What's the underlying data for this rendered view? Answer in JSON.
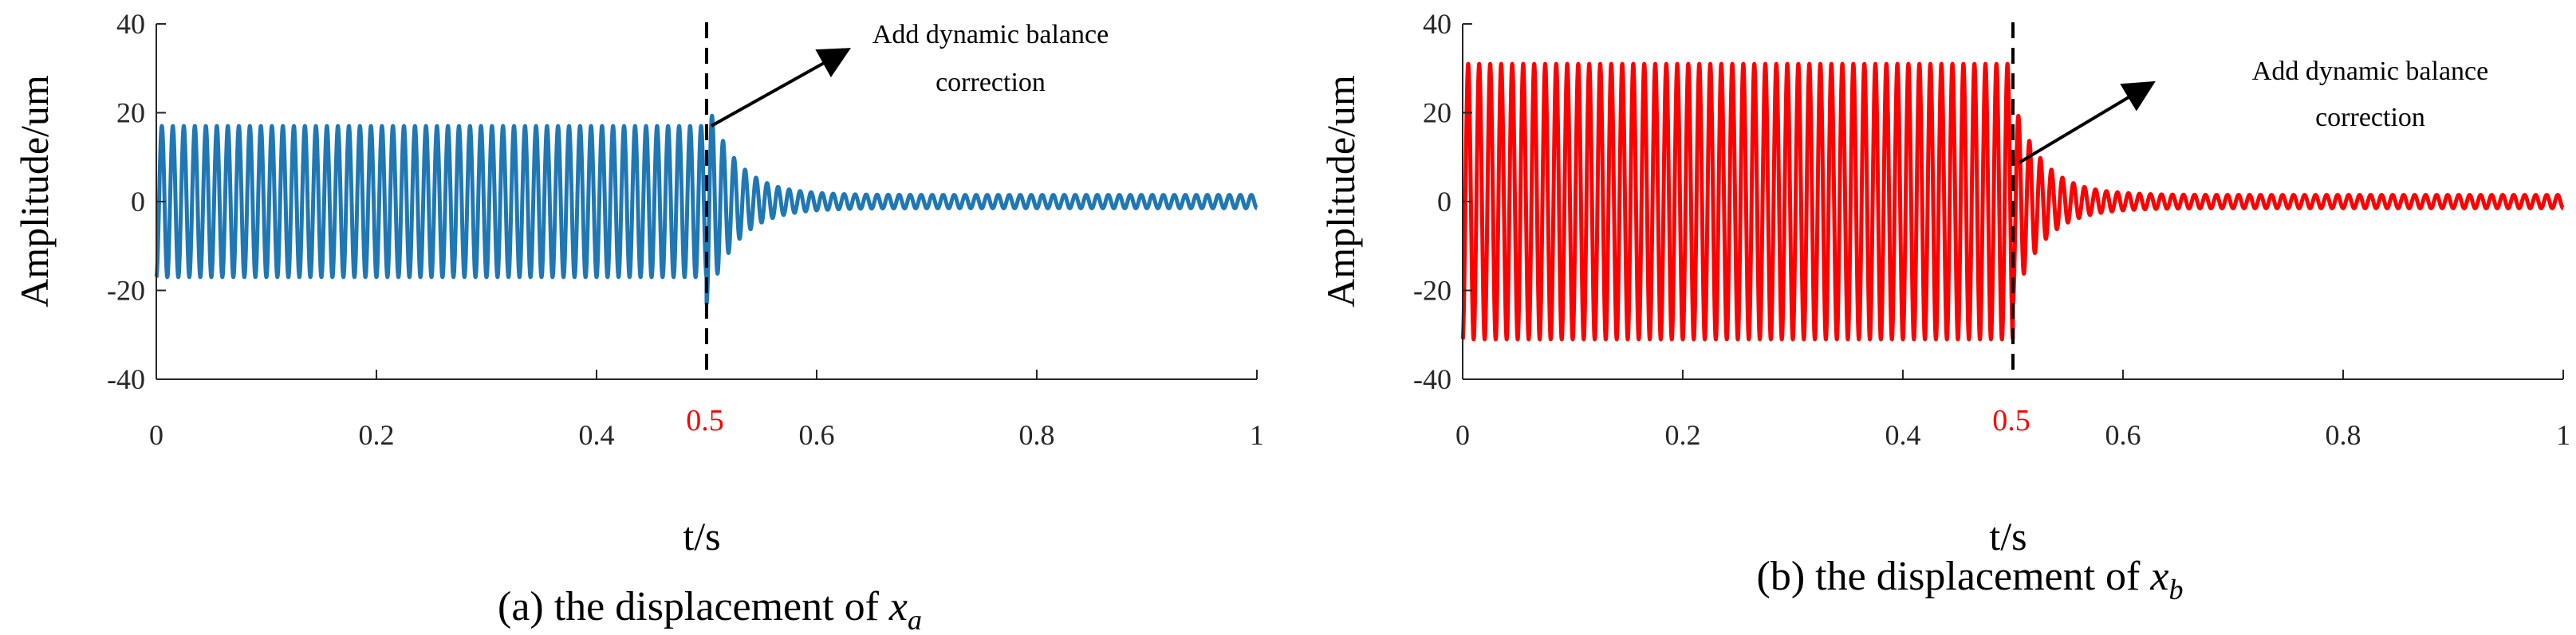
{
  "chart_data": [
    {
      "type": "line",
      "panel": "a",
      "caption_prefix": "(a) the displacement of ",
      "caption_var": "x",
      "caption_sub": "a",
      "xlabel": "t/s",
      "ylabel": "Amplitude/um",
      "xlim": [
        0,
        1
      ],
      "ylim": [
        -40,
        40
      ],
      "xticks": [
        "0",
        "0.2",
        "0.4",
        "0.6",
        "0.8",
        "1"
      ],
      "xtick_values": [
        0,
        0.2,
        0.4,
        0.6,
        0.8,
        1
      ],
      "yticks": [
        "40",
        "20",
        "0",
        "-20",
        "-40"
      ],
      "ytick_values": [
        40,
        20,
        0,
        -20,
        -40
      ],
      "marker_label": "0.5",
      "marker_x": 0.5,
      "annotation": [
        "Add dynamic balance",
        "correction"
      ],
      "color": "#1f77b4",
      "series": [
        {
          "name": "x_a",
          "frequency_hz": 100,
          "amplitude_before": 17,
          "correction_time": 0.5,
          "peak_after_correction": 23,
          "decay_rate": 38,
          "residual_amplitude": 1.5
        }
      ]
    },
    {
      "type": "line",
      "panel": "b",
      "caption_prefix": "(b) the displacement of ",
      "caption_var": "x",
      "caption_sub": "b",
      "xlabel": "t/s",
      "ylabel": "Amplitude/um",
      "xlim": [
        0,
        1
      ],
      "ylim": [
        -40,
        40
      ],
      "xticks": [
        "0",
        "0.2",
        "0.4",
        "0.6",
        "0.8",
        "1"
      ],
      "xtick_values": [
        0,
        0.2,
        0.4,
        0.6,
        0.8,
        1
      ],
      "yticks": [
        "40",
        "20",
        "0",
        "-20",
        "-40"
      ],
      "ytick_values": [
        40,
        20,
        0,
        -20,
        -40
      ],
      "marker_label": "0.5",
      "marker_x": 0.5,
      "annotation": [
        "Add dynamic balance",
        "correction"
      ],
      "color": "#ff0000",
      "series": [
        {
          "name": "x_b",
          "frequency_hz": 100,
          "amplitude_before": 31,
          "correction_time": 0.5,
          "peak_after_correction": 23,
          "decay_rate": 38,
          "residual_amplitude": 1.5
        }
      ]
    }
  ]
}
